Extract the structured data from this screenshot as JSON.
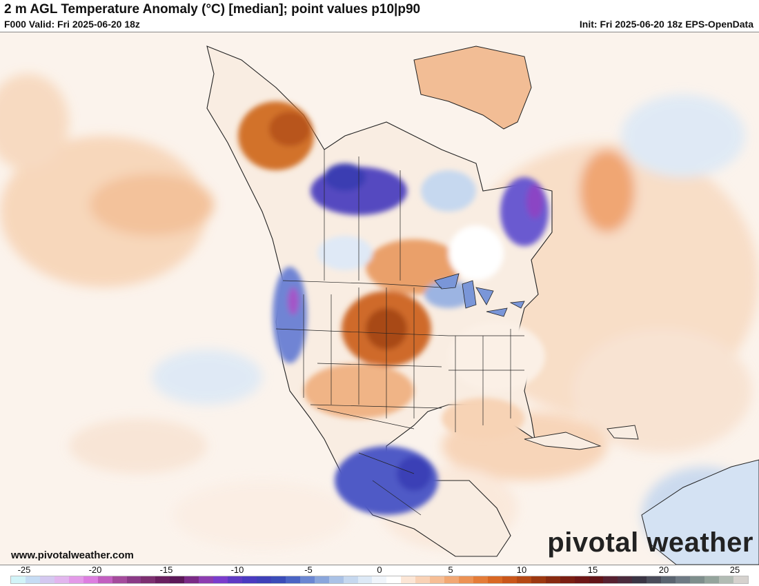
{
  "header": {
    "title": "2 m AGL Temperature Anomaly (°C) [median]; point values p10|p90",
    "valid": "F000 Valid: Fri 2025-06-20 18z",
    "init": "Init: Fri 2025-06-20 18z EPS-OpenData"
  },
  "footer": {
    "website": "www.pivotalweather.com",
    "logo_text": "pivotal weather"
  },
  "colorbar": {
    "min": -25,
    "max": 25,
    "tick_labels": [
      "-25",
      "-20",
      "-15",
      "-10",
      "-5",
      "0",
      "5",
      "10",
      "15",
      "20",
      "25"
    ],
    "colors": [
      "#d2f4f8",
      "#c6dcf4",
      "#d4c8f0",
      "#e2b6ee",
      "#e39ae8",
      "#dd7ee0",
      "#c25fc0",
      "#a44b9c",
      "#8a3a86",
      "#7c2f70",
      "#6a1f5f",
      "#5b1858",
      "#7a2a86",
      "#8c3cb0",
      "#7a3ccc",
      "#5e3ac4",
      "#4a3ac0",
      "#3e40b8",
      "#3a4cb8",
      "#4a64c4",
      "#6a86d2",
      "#8aa6dc",
      "#aac2e6",
      "#c6d8ef",
      "#dde9f6",
      "#f0f5fb",
      "#ffffff",
      "#fce6d6",
      "#f9d2b6",
      "#f6be96",
      "#f2a874",
      "#ec9254",
      "#e47c38",
      "#d96824",
      "#c9561a",
      "#b44814",
      "#9c3810",
      "#882a10",
      "#7a1e12",
      "#6e1616",
      "#621418",
      "#562030",
      "#4a2a3c",
      "#3a3444",
      "#4a4c5a",
      "#5a6470",
      "#6e7a84",
      "#7e8e8c",
      "#94a49c",
      "#b2bcb4",
      "#d6d2ce"
    ]
  },
  "map": {
    "description": "North America 2m temperature anomaly shaded map with state/province borders",
    "land_color": "#f9f0e6",
    "ocean_color": "#fbf3ec"
  }
}
